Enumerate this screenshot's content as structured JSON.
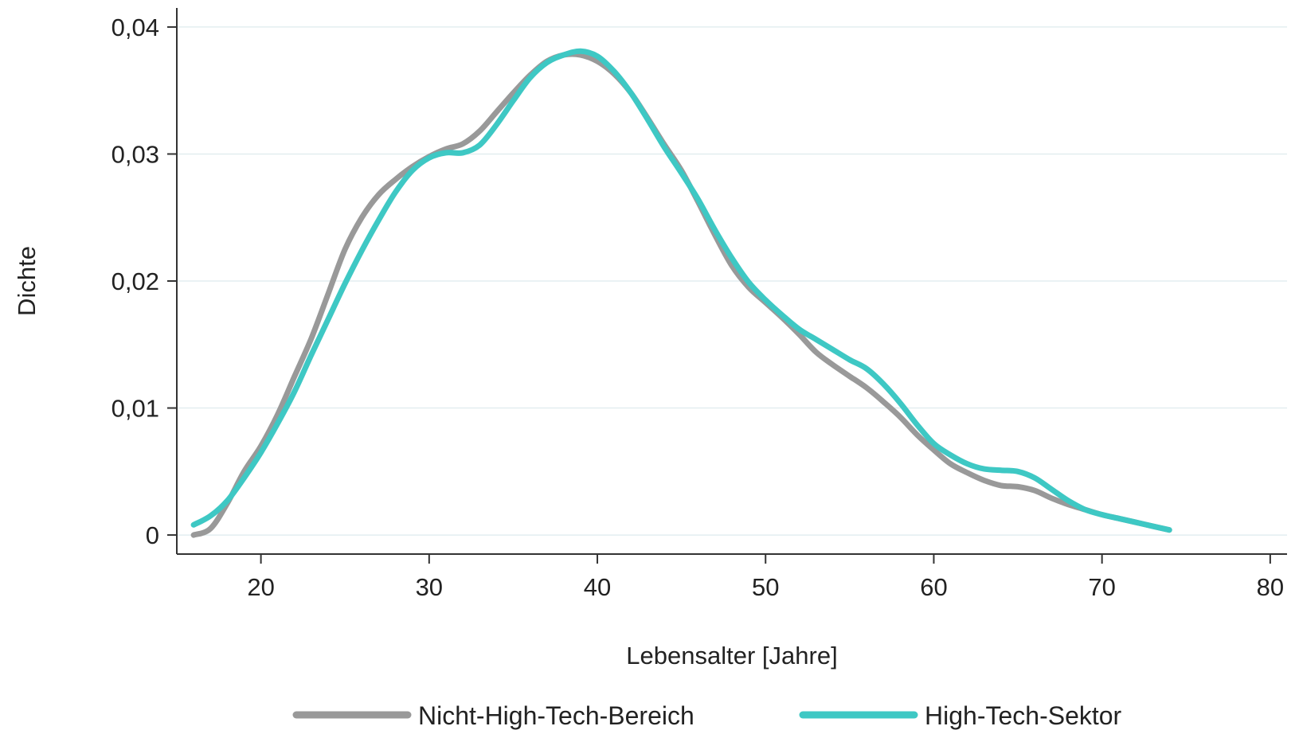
{
  "chart_data": {
    "type": "line",
    "title": "",
    "xlabel": "Lebensalter [Jahre]",
    "ylabel": "Dichte",
    "xlim": [
      15,
      81
    ],
    "ylim": [
      -0.0015,
      0.0415
    ],
    "x_ticks": [
      20,
      30,
      40,
      50,
      60,
      70,
      80
    ],
    "x_tick_labels": [
      "20",
      "30",
      "40",
      "50",
      "60",
      "70",
      "80"
    ],
    "y_ticks": [
      0,
      0.01,
      0.02,
      0.03,
      0.04
    ],
    "y_tick_labels": [
      "0",
      "0,01",
      "0,02",
      "0,03",
      "0,04"
    ],
    "grid": "horizontal",
    "legend_position": "bottom",
    "series": [
      {
        "name": "Nicht-High-Tech-Bereich",
        "color": "#999999",
        "points": [
          [
            16,
            0.0
          ],
          [
            17,
            0.0005
          ],
          [
            18,
            0.0025
          ],
          [
            19,
            0.005
          ],
          [
            20,
            0.007
          ],
          [
            21,
            0.0095
          ],
          [
            22,
            0.0125
          ],
          [
            23,
            0.0155
          ],
          [
            24,
            0.019
          ],
          [
            25,
            0.0225
          ],
          [
            26,
            0.025
          ],
          [
            27,
            0.0268
          ],
          [
            28,
            0.028
          ],
          [
            29,
            0.029
          ],
          [
            30,
            0.0298
          ],
          [
            31,
            0.0304
          ],
          [
            32,
            0.0308
          ],
          [
            33,
            0.0318
          ],
          [
            34,
            0.0333
          ],
          [
            35,
            0.0348
          ],
          [
            36,
            0.0362
          ],
          [
            37,
            0.0373
          ],
          [
            38,
            0.0378
          ],
          [
            39,
            0.0378
          ],
          [
            40,
            0.0373
          ],
          [
            41,
            0.0363
          ],
          [
            42,
            0.0348
          ],
          [
            43,
            0.0328
          ],
          [
            44,
            0.0307
          ],
          [
            45,
            0.0287
          ],
          [
            46,
            0.0262
          ],
          [
            47,
            0.0236
          ],
          [
            48,
            0.0212
          ],
          [
            49,
            0.0195
          ],
          [
            50,
            0.0183
          ],
          [
            51,
            0.0171
          ],
          [
            52,
            0.0158
          ],
          [
            53,
            0.0144
          ],
          [
            54,
            0.0134
          ],
          [
            55,
            0.0125
          ],
          [
            56,
            0.0116
          ],
          [
            57,
            0.0105
          ],
          [
            58,
            0.0093
          ],
          [
            59,
            0.0079
          ],
          [
            60,
            0.0067
          ],
          [
            61,
            0.0056
          ],
          [
            62,
            0.0049
          ],
          [
            63,
            0.0043
          ],
          [
            64,
            0.0039
          ],
          [
            65,
            0.0038
          ],
          [
            66,
            0.0035
          ],
          [
            67,
            0.0029
          ],
          [
            68,
            0.0024
          ],
          [
            69,
            0.002
          ],
          [
            70,
            0.0016
          ],
          [
            71,
            0.0013
          ],
          [
            72,
            0.001
          ],
          [
            73,
            0.0007
          ],
          [
            74,
            0.0004
          ]
        ]
      },
      {
        "name": "High-Tech-Sektor",
        "color": "#3ec8c4",
        "points": [
          [
            16,
            0.0008
          ],
          [
            17,
            0.0015
          ],
          [
            18,
            0.0027
          ],
          [
            19,
            0.0045
          ],
          [
            20,
            0.0065
          ],
          [
            21,
            0.0088
          ],
          [
            22,
            0.0113
          ],
          [
            23,
            0.0142
          ],
          [
            24,
            0.017
          ],
          [
            25,
            0.0198
          ],
          [
            26,
            0.0224
          ],
          [
            27,
            0.0248
          ],
          [
            28,
            0.027
          ],
          [
            29,
            0.0287
          ],
          [
            30,
            0.0297
          ],
          [
            31,
            0.0301
          ],
          [
            32,
            0.0301
          ],
          [
            33,
            0.0307
          ],
          [
            34,
            0.0323
          ],
          [
            35,
            0.0342
          ],
          [
            36,
            0.036
          ],
          [
            37,
            0.0372
          ],
          [
            38,
            0.0378
          ],
          [
            39,
            0.0381
          ],
          [
            40,
            0.0377
          ],
          [
            41,
            0.0365
          ],
          [
            42,
            0.0348
          ],
          [
            43,
            0.0327
          ],
          [
            44,
            0.0305
          ],
          [
            45,
            0.0285
          ],
          [
            46,
            0.0264
          ],
          [
            47,
            0.024
          ],
          [
            48,
            0.0218
          ],
          [
            49,
            0.0199
          ],
          [
            50,
            0.0185
          ],
          [
            51,
            0.0173
          ],
          [
            52,
            0.0162
          ],
          [
            53,
            0.0154
          ],
          [
            54,
            0.0146
          ],
          [
            55,
            0.0138
          ],
          [
            56,
            0.0131
          ],
          [
            57,
            0.0119
          ],
          [
            58,
            0.0104
          ],
          [
            59,
            0.0087
          ],
          [
            60,
            0.0072
          ],
          [
            61,
            0.0063
          ],
          [
            62,
            0.0056
          ],
          [
            63,
            0.0052
          ],
          [
            64,
            0.0051
          ],
          [
            65,
            0.005
          ],
          [
            66,
            0.0045
          ],
          [
            67,
            0.0036
          ],
          [
            68,
            0.0027
          ],
          [
            69,
            0.002
          ],
          [
            70,
            0.0016
          ],
          [
            71,
            0.0013
          ],
          [
            72,
            0.001
          ],
          [
            73,
            0.0007
          ],
          [
            74,
            0.0004
          ]
        ]
      }
    ]
  }
}
